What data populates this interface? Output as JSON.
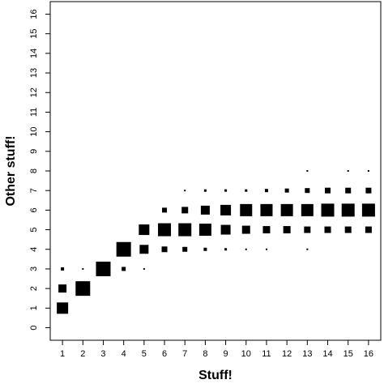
{
  "chart_data": {
    "type": "scatter",
    "marker": "square",
    "color": "#000000",
    "x_label": "Stuff!",
    "y_label": "Other stuff!",
    "x": [
      1,
      1,
      1,
      2,
      2,
      3,
      4,
      4,
      5,
      5,
      5,
      6,
      6,
      6,
      7,
      7,
      7,
      7,
      8,
      8,
      8,
      8,
      9,
      9,
      9,
      9,
      10,
      10,
      10,
      10,
      11,
      11,
      11,
      11,
      12,
      12,
      12,
      13,
      13,
      13,
      13,
      13,
      14,
      14,
      14,
      15,
      15,
      15,
      15,
      16,
      16,
      16,
      16
    ],
    "y": [
      1,
      2,
      3,
      2,
      3,
      3,
      4,
      3,
      5,
      4,
      3,
      6,
      5,
      4,
      7,
      6,
      5,
      4,
      7,
      6,
      5,
      4,
      7,
      6,
      5,
      4,
      7,
      6,
      5,
      4,
      7,
      6,
      5,
      4,
      7,
      6,
      5,
      8,
      7,
      6,
      5,
      4,
      7,
      6,
      5,
      8,
      7,
      6,
      5,
      8,
      7,
      6,
      5
    ],
    "sizes": [
      14,
      10,
      4,
      18,
      2,
      18,
      18,
      5,
      13,
      11,
      2,
      6,
      16,
      7,
      2,
      8,
      16,
      6,
      3,
      11,
      15,
      4,
      3,
      13,
      12,
      3,
      3,
      15,
      10,
      2,
      4,
      15,
      9,
      2,
      5,
      15,
      9,
      2,
      6,
      15,
      8,
      2,
      7,
      16,
      8,
      2,
      7,
      16,
      8,
      2,
      7,
      16,
      8
    ],
    "xlim": [
      0.4,
      16.6
    ],
    "ylim": [
      -0.64,
      16.64
    ],
    "xticks": [
      1,
      2,
      3,
      4,
      5,
      6,
      7,
      8,
      9,
      10,
      11,
      12,
      13,
      14,
      15,
      16
    ],
    "yticks": [
      0,
      1,
      2,
      3,
      4,
      5,
      6,
      7,
      8,
      9,
      10,
      11,
      12,
      13,
      14,
      15,
      16
    ]
  }
}
